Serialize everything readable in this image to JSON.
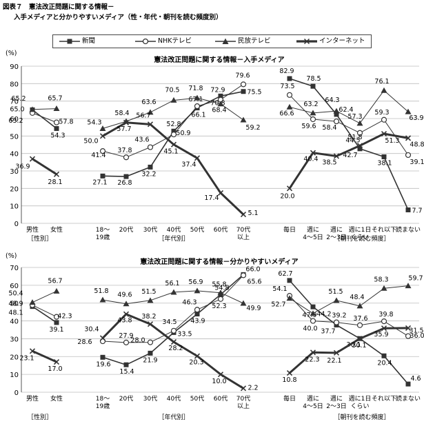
{
  "figure": {
    "title": "図表７　憲法改正問題に関する情報－",
    "subtitle": "入手メディアと分かりやすいメディア（性・年代・朝刊を読む頻度別）"
  },
  "legend": [
    {
      "name": "新聞",
      "marker": "square",
      "color": "#333333"
    },
    {
      "name": "NHKテレビ",
      "marker": "circle",
      "color": "#333333"
    },
    {
      "name": "民放テレビ",
      "marker": "triangle",
      "color": "#333333"
    },
    {
      "name": "インターネット",
      "marker": "x",
      "color": "#333333"
    }
  ],
  "chart_data": [
    {
      "type": "line",
      "title": "憲法改正問題に関する情報－入手メディア",
      "ylabel": "(%)",
      "ylim": [
        0,
        90
      ],
      "yticks": [
        0,
        10,
        20,
        30,
        40,
        50,
        60,
        70,
        80,
        90
      ],
      "categories": [
        "男性",
        "女性",
        "18～19歳",
        "20代",
        "30代",
        "40代",
        "50代",
        "60代",
        "70代以上",
        "毎日",
        "週に4～5日",
        "週に2～3日",
        "週に1日くらい",
        "それ以下",
        "読まない"
      ],
      "category_labels": [
        [
          "男性"
        ],
        [
          "女性"
        ],
        [
          "18～",
          "19歳"
        ],
        [
          "20代"
        ],
        [
          "30代"
        ],
        [
          "40代"
        ],
        [
          "50代"
        ],
        [
          "60代"
        ],
        [
          "70代",
          "以上"
        ],
        [
          "毎日"
        ],
        [
          "週に",
          "4～5日"
        ],
        [
          "週に",
          "2～3日"
        ],
        [
          "週に1日",
          "くらい"
        ],
        [
          "それ以下"
        ],
        [
          "読まない"
        ]
      ],
      "groups": [
        "［性別］",
        "［年代別］",
        "［朝刊を読む頻度］"
      ],
      "segments": [
        [
          0,
          1
        ],
        [
          2,
          8
        ],
        [
          9,
          14
        ]
      ],
      "grid": true,
      "series": [
        {
          "name": "新聞",
          "values": [
            65.0,
            54.3,
            27.1,
            26.8,
            32.2,
            52.8,
            66.1,
            72.9,
            75.5,
            82.9,
            78.5,
            62.4,
            42.7,
            38.1,
            7.7
          ],
          "labels": [
            "65.0",
            "54.3",
            "27.1",
            "26.8",
            "32.2",
            "52.8",
            "66.1",
            "72.9",
            "75.5",
            "82.9",
            "78.5",
            "62.4",
            "42.7",
            "38.1",
            "7.7"
          ]
        },
        {
          "name": "NHKテレビ",
          "values": [
            63.2,
            57.8,
            41.4,
            37.8,
            43.6,
            50.9,
            67.1,
            70.8,
            79.6,
            73.5,
            59.6,
            58.4,
            51.8,
            59.3,
            39.1
          ],
          "labels": [
            "63.2",
            "57.8",
            "41.4",
            "37.8",
            "43.6",
            "50.9",
            "67.1",
            "70.8",
            "79.6",
            "73.5",
            "59.6",
            "58.4",
            "51.8",
            "59.3",
            "39.1"
          ]
        },
        {
          "name": "民放テレビ",
          "values": [
            65.2,
            65.7,
            54.3,
            58.4,
            63.6,
            70.5,
            71.8,
            68.4,
            59.2,
            66.6,
            63.2,
            64.3,
            57.3,
            76.1,
            63.9
          ],
          "labels": [
            "65.2",
            "65.7",
            "54.3",
            "58.4",
            "63.6",
            "70.5",
            "71.8",
            "68.4",
            "59.2",
            "66.6",
            "63.2",
            "64.3",
            "57.3",
            "76.1",
            "63.9"
          ]
        },
        {
          "name": "インターネット",
          "values": [
            36.9,
            28.1,
            50.0,
            57.7,
            56.7,
            45.1,
            37.4,
            17.4,
            5.1,
            20.0,
            40.4,
            38.5,
            44.5,
            51.3,
            48.8
          ],
          "labels": [
            "36.9",
            "28.1",
            "50.0",
            "57.7",
            "56.7",
            "45.1",
            "37.4",
            "17.4",
            "5.1",
            "20.0",
            "40.4",
            "38.5",
            "44.5",
            "51.3",
            "48.8"
          ]
        }
      ]
    },
    {
      "type": "line",
      "title": "憲法改正問題に関する情報－分かりやすいメディア",
      "ylabel": "(%)",
      "ylim": [
        0,
        70
      ],
      "yticks": [
        0,
        10,
        20,
        30,
        40,
        50,
        60,
        70
      ],
      "categories": [
        "男性",
        "女性",
        "18～19歳",
        "20代",
        "30代",
        "40代",
        "50代",
        "60代",
        "70代以上",
        "毎日",
        "週に4～5日",
        "週に2～3日",
        "週に1日くらい",
        "それ以下",
        "読まない"
      ],
      "category_labels": [
        [
          "男性"
        ],
        [
          "女性"
        ],
        [
          "18～",
          "19歳"
        ],
        [
          "20代"
        ],
        [
          "30代"
        ],
        [
          "40代"
        ],
        [
          "50代"
        ],
        [
          "60代"
        ],
        [
          "70代",
          "以上"
        ],
        [
          "毎日"
        ],
        [
          "週に",
          "4～5日"
        ],
        [
          "週に",
          "2～3日"
        ],
        [
          "週に1日",
          "くらい"
        ],
        [
          "それ以下"
        ],
        [
          "読まない"
        ]
      ],
      "groups": [
        "［性別］",
        "［年代別］",
        "［朝刊を読む頻度］"
      ],
      "segments": [
        [
          0,
          1
        ],
        [
          2,
          8
        ],
        [
          9,
          14
        ]
      ],
      "grid": true,
      "series": [
        {
          "name": "新聞",
          "values": [
            48.1,
            39.1,
            19.6,
            15.4,
            21.9,
            33.5,
            43.9,
            54.8,
            66.0,
            62.7,
            47.9,
            37.7,
            30.1,
            20.4,
            4.6
          ],
          "labels": [
            "48.1",
            "39.1",
            "19.6",
            "15.4",
            "21.9",
            "33.5",
            "43.9",
            "54.8",
            "66.0",
            "62.7",
            "47.9",
            "37.7",
            "30.1",
            "20.4",
            "4.6"
          ]
        },
        {
          "name": "NHKテレビ",
          "values": [
            48.9,
            42.3,
            28.6,
            27.9,
            28.0,
            34.5,
            46.3,
            52.3,
            65.6,
            54.1,
            40.0,
            39.2,
            37.6,
            39.8,
            31.5
          ],
          "labels": [
            "48.9",
            "42.3",
            "28.6",
            "27.9",
            "28.0",
            "34.5",
            "46.3",
            "52.3",
            "65.6",
            "54.1",
            "40.0",
            "39.2",
            "37.6",
            "39.8",
            "31.5"
          ]
        },
        {
          "name": "民放テレビ",
          "values": [
            50.4,
            56.7,
            51.8,
            49.6,
            51.5,
            56.1,
            56.9,
            55.8,
            49.9,
            52.7,
            44.2,
            51.5,
            48.4,
            58.3,
            59.7
          ],
          "labels": [
            "50.4",
            "56.7",
            "51.8",
            "49.6",
            "51.5",
            "56.1",
            "56.9",
            "55.8",
            "49.9",
            "52.7",
            "44.2",
            "51.5",
            "48.4",
            "58.3",
            "59.7"
          ]
        },
        {
          "name": "インターネット",
          "values": [
            23.1,
            17.0,
            30.4,
            43.8,
            38.2,
            28.2,
            20.3,
            10.0,
            2.2,
            10.8,
            22.3,
            22.1,
            30.1,
            35.9,
            36.0
          ],
          "labels": [
            "23.1",
            "17.0",
            "30.4",
            "43.8",
            "38.2",
            "28.2",
            "20.3",
            "10.0",
            "2.2",
            "10.8",
            "22.3",
            "22.1",
            "30.1",
            "35.9",
            "36.0"
          ]
        }
      ]
    }
  ]
}
